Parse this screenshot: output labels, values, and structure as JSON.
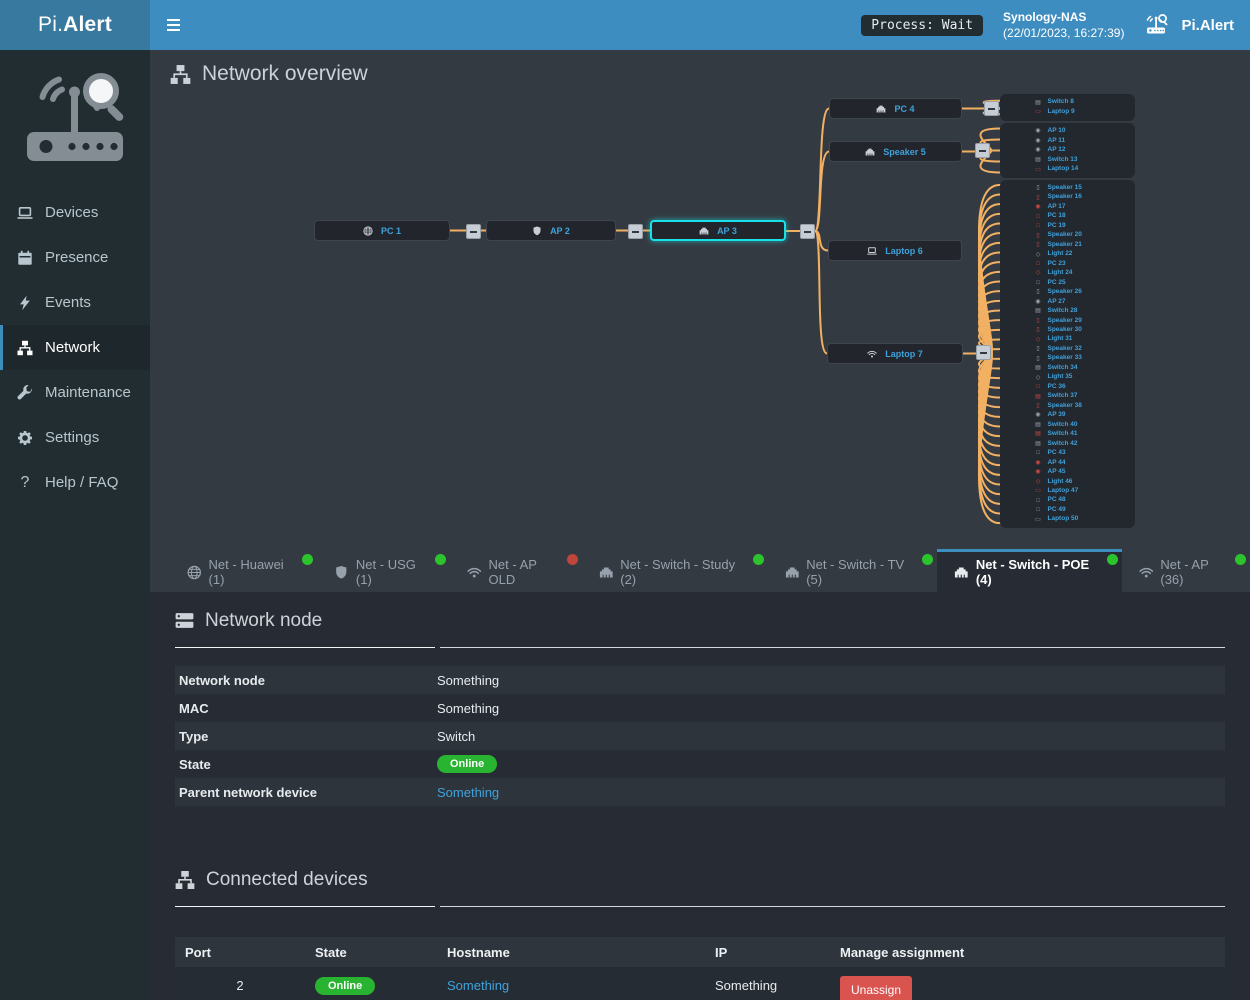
{
  "header": {
    "brand_prefix": "Pi.",
    "brand_suffix": "Alert",
    "process_status": "Process: Wait",
    "host": "Synology-NAS",
    "timestamp": "(22/01/2023, 16:27:39)",
    "brand_right": "Pi.Alert"
  },
  "sidebar": {
    "items": [
      {
        "label": "Devices",
        "icon": "laptop",
        "active": false
      },
      {
        "label": "Presence",
        "icon": "calendar",
        "active": false
      },
      {
        "label": "Events",
        "icon": "bolt",
        "active": false
      },
      {
        "label": "Network",
        "icon": "sitemap",
        "active": true
      },
      {
        "label": "Maintenance",
        "icon": "wrench",
        "active": false
      },
      {
        "label": "Settings",
        "icon": "gear",
        "active": false
      },
      {
        "label": "Help / FAQ",
        "icon": "question",
        "active": false
      }
    ]
  },
  "page": {
    "title": "Network overview"
  },
  "diagram": {
    "nodes": [
      {
        "id": "pc1",
        "label": "PC 1",
        "icon": "globe",
        "selected": false
      },
      {
        "id": "ap2",
        "label": "AP 2",
        "icon": "shield",
        "selected": false
      },
      {
        "id": "ap3",
        "label": "AP 3",
        "icon": "ethernet",
        "selected": true
      },
      {
        "id": "pc4",
        "label": "PC 4",
        "icon": "ethernet",
        "selected": false
      },
      {
        "id": "speaker5",
        "label": "Speaker 5",
        "icon": "ethernet",
        "selected": false
      },
      {
        "id": "laptop6",
        "label": "Laptop 6",
        "icon": "laptop",
        "selected": false
      },
      {
        "id": "laptop7",
        "label": "Laptop 7",
        "icon": "wifi",
        "selected": false
      }
    ],
    "groups": [
      {
        "parent": "pc4",
        "items": [
          {
            "label": "Switch 8",
            "type": "switch",
            "state": "on"
          },
          {
            "label": "Laptop 9",
            "type": "laptop",
            "state": "off"
          }
        ]
      },
      {
        "parent": "speaker5",
        "items": [
          {
            "label": "AP 10",
            "type": "ap",
            "state": "on"
          },
          {
            "label": "AP 11",
            "type": "ap",
            "state": "on"
          },
          {
            "label": "AP 12",
            "type": "ap",
            "state": "on"
          },
          {
            "label": "Switch 13",
            "type": "switch",
            "state": "on"
          },
          {
            "label": "Laptop 14",
            "type": "laptop",
            "state": "off"
          }
        ]
      },
      {
        "parent": "laptop7",
        "items": [
          {
            "label": "Speaker 15",
            "type": "speaker",
            "state": "on"
          },
          {
            "label": "Speaker 16",
            "type": "speaker",
            "state": "off"
          },
          {
            "label": "AP 17",
            "type": "ap",
            "state": "off"
          },
          {
            "label": "PC 18",
            "type": "pc",
            "state": "off"
          },
          {
            "label": "PC 19",
            "type": "pc",
            "state": "off"
          },
          {
            "label": "Speaker 20",
            "type": "speaker",
            "state": "off"
          },
          {
            "label": "Speaker 21",
            "type": "speaker",
            "state": "off"
          },
          {
            "label": "Light 22",
            "type": "light",
            "state": "on"
          },
          {
            "label": "PC 23",
            "type": "pc",
            "state": "off"
          },
          {
            "label": "Light 24",
            "type": "light",
            "state": "off"
          },
          {
            "label": "PC 25",
            "type": "pc",
            "state": "on"
          },
          {
            "label": "Speaker 26",
            "type": "speaker",
            "state": "on"
          },
          {
            "label": "AP 27",
            "type": "ap",
            "state": "on"
          },
          {
            "label": "Switch 28",
            "type": "switch",
            "state": "on"
          },
          {
            "label": "Speaker 29",
            "type": "speaker",
            "state": "off"
          },
          {
            "label": "Speaker 30",
            "type": "speaker",
            "state": "off"
          },
          {
            "label": "Light 31",
            "type": "light",
            "state": "off"
          },
          {
            "label": "Speaker 32",
            "type": "speaker",
            "state": "on"
          },
          {
            "label": "Speaker 33",
            "type": "speaker",
            "state": "on"
          },
          {
            "label": "Switch 34",
            "type": "switch",
            "state": "on"
          },
          {
            "label": "Light 35",
            "type": "light",
            "state": "on"
          },
          {
            "label": "PC 36",
            "type": "pc",
            "state": "off"
          },
          {
            "label": "Switch 37",
            "type": "switch",
            "state": "off"
          },
          {
            "label": "Speaker 38",
            "type": "speaker",
            "state": "off"
          },
          {
            "label": "AP 39",
            "type": "ap",
            "state": "on"
          },
          {
            "label": "Switch 40",
            "type": "switch",
            "state": "on"
          },
          {
            "label": "Switch 41",
            "type": "switch",
            "state": "off"
          },
          {
            "label": "Switch 42",
            "type": "switch",
            "state": "on"
          },
          {
            "label": "PC 43",
            "type": "pc",
            "state": "on"
          },
          {
            "label": "AP 44",
            "type": "ap",
            "state": "off"
          },
          {
            "label": "AP 45",
            "type": "ap",
            "state": "off"
          },
          {
            "label": "Light 46",
            "type": "light",
            "state": "off"
          },
          {
            "label": "Laptop 47",
            "type": "laptop",
            "state": "off"
          },
          {
            "label": "PC 48",
            "type": "pc",
            "state": "on"
          },
          {
            "label": "PC 49",
            "type": "pc",
            "state": "on"
          },
          {
            "label": "Laptop 50",
            "type": "laptop",
            "state": "on"
          }
        ]
      }
    ]
  },
  "tabs": [
    {
      "icon": "globe",
      "label": "Net - Huawei (1)",
      "dot": "green",
      "active": false
    },
    {
      "icon": "shield",
      "label": "Net - USG (1)",
      "dot": "green",
      "active": false
    },
    {
      "icon": "wifi",
      "label": "Net - AP OLD",
      "dot": "red",
      "active": false
    },
    {
      "icon": "ethernet",
      "label": "Net - Switch - Study (2)",
      "dot": "green",
      "active": false
    },
    {
      "icon": "ethernet",
      "label": "Net - Switch - TV (5)",
      "dot": "green",
      "active": false
    },
    {
      "icon": "ethernet",
      "label": "Net - Switch - POE (4)",
      "dot": "green",
      "active": true
    },
    {
      "icon": "wifi",
      "label": "Net - AP (36)",
      "dot": "green",
      "active": false
    }
  ],
  "network_node": {
    "title": "Network node",
    "rows": [
      {
        "label": "Network node",
        "value": "Something",
        "kind": "text"
      },
      {
        "label": "MAC",
        "value": "Something",
        "kind": "text"
      },
      {
        "label": "Type",
        "value": "Switch",
        "kind": "text"
      },
      {
        "label": "State",
        "value": "Online",
        "kind": "badge"
      },
      {
        "label": "Parent network device",
        "value": "Something",
        "kind": "link"
      }
    ]
  },
  "connected_devices": {
    "title": "Connected devices",
    "columns": [
      "Port",
      "State",
      "Hostname",
      "IP",
      "Manage assignment"
    ],
    "rows": [
      {
        "port": "2",
        "state": "Online",
        "hostname": "Something",
        "ip": "Something",
        "action": "Unassign"
      }
    ]
  },
  "colors": {
    "accent": "#3c8dbc",
    "selected_node": "#17e0e6",
    "line": "#f2b063",
    "online_badge": "#28b430",
    "offline_icon": "#cf4a41",
    "online_icon": "#9ba3ab",
    "link": "#3fa2dc",
    "danger": "#d9534f",
    "dot_green": "#2cc42c",
    "dot_red": "#c0453a"
  }
}
